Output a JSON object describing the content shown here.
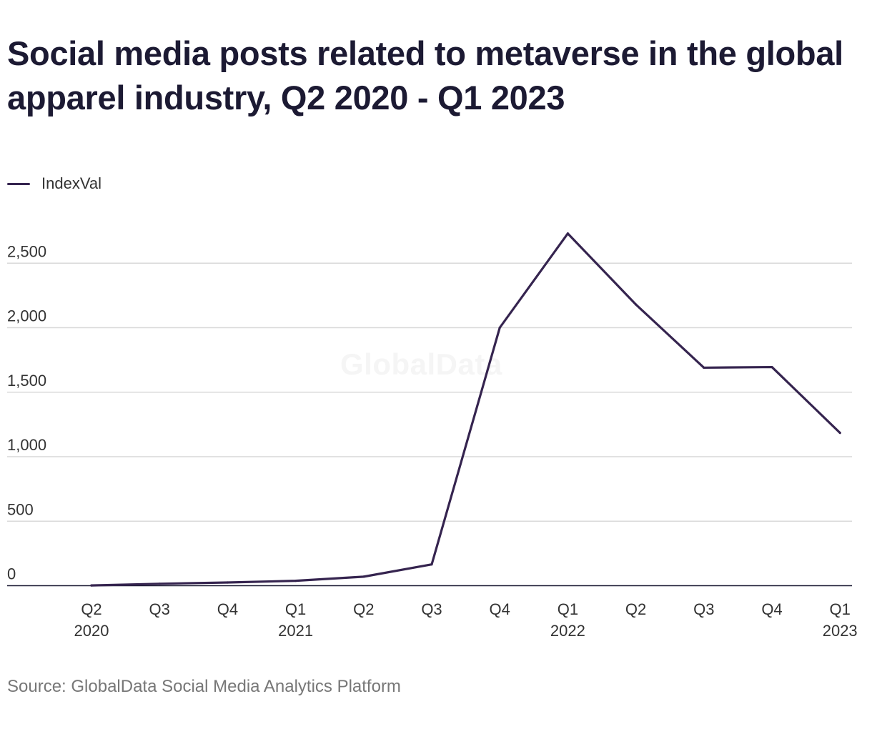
{
  "title": "Social media posts related to metaverse in the global apparel industry, Q2 2020 - Q1 2023",
  "legend": {
    "label": "IndexVal"
  },
  "watermark": "GlobalData",
  "source": "Source: GlobalData Social Media Analytics Platform",
  "colors": {
    "series_line": "#35244f",
    "grid": "#d9d9d9",
    "axis": "#1c1a33",
    "title": "#1c1a33"
  },
  "chart_data": {
    "type": "line",
    "title": "Social media posts related to metaverse in the global apparel industry, Q2 2020 - Q1 2023",
    "xlabel": "",
    "ylabel": "",
    "categories": [
      [
        "Q2",
        "2020"
      ],
      [
        "Q3",
        ""
      ],
      [
        "Q4",
        ""
      ],
      [
        "Q1",
        "2021"
      ],
      [
        "Q2",
        ""
      ],
      [
        "Q3",
        ""
      ],
      [
        "Q4",
        ""
      ],
      [
        "Q1",
        "2022"
      ],
      [
        "Q2",
        ""
      ],
      [
        "Q3",
        ""
      ],
      [
        "Q4",
        ""
      ],
      [
        "Q1",
        "2023"
      ]
    ],
    "series": [
      {
        "name": "IndexVal",
        "values": [
          2,
          15,
          25,
          38,
          70,
          165,
          2000,
          2730,
          2180,
          1690,
          1695,
          1185
        ]
      }
    ],
    "yticks": [
      0,
      500,
      1000,
      1500,
      2000,
      2500
    ],
    "ytick_labels": [
      "0",
      "500",
      "1,000",
      "1,500",
      "2,000",
      "2,500"
    ],
    "ylim": [
      0,
      2800
    ],
    "grid": true,
    "legend_position": "top-left"
  }
}
